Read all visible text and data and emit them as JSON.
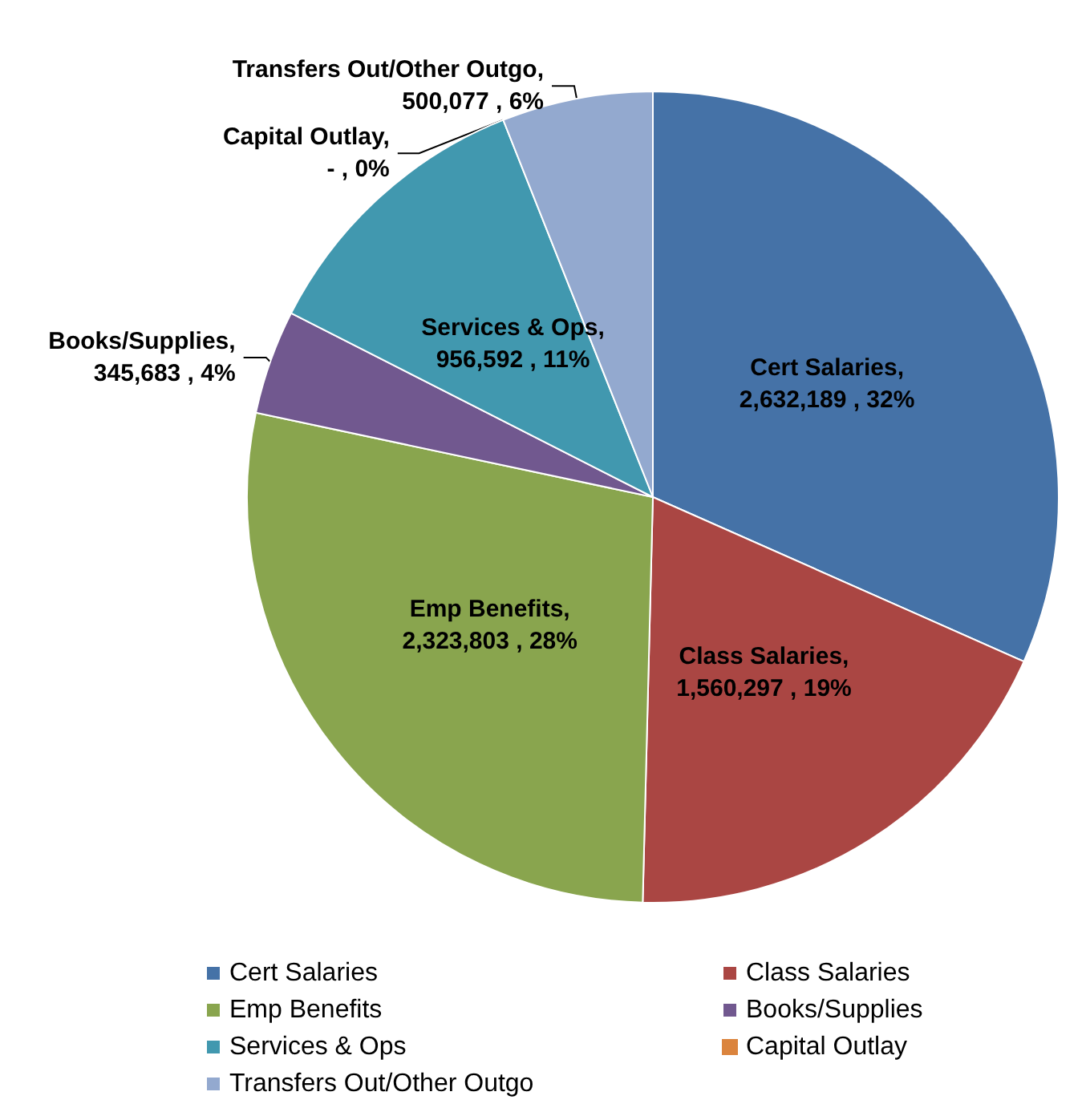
{
  "chart_data": {
    "type": "pie",
    "categories": [
      "Cert Salaries",
      "Class Salaries",
      "Emp Benefits",
      "Books/Supplies",
      "Services & Ops",
      "Capital Outlay",
      "Transfers Out/Other Outgo"
    ],
    "values": [
      2632189,
      1560297,
      2323803,
      345683,
      956592,
      0,
      500077
    ],
    "colors": [
      "#4572a7",
      "#aa4643",
      "#89a54e",
      "#71588f",
      "#4198af",
      "#db843d",
      "#93a9cf"
    ],
    "value_labels": [
      "Cert Salaries, 2,632,189 , 32%",
      "Class Salaries, 1,560,297 , 19%",
      "Emp Benefits, 2,323,803 , 28%",
      "Books/Supplies, 345,683 , 4%",
      "Services & Ops, 956,592 , 11%",
      "Capital Outlay, - , 0%",
      "Transfers Out/Other Outgo, 500,077 , 6%"
    ],
    "legend": "bottom"
  }
}
